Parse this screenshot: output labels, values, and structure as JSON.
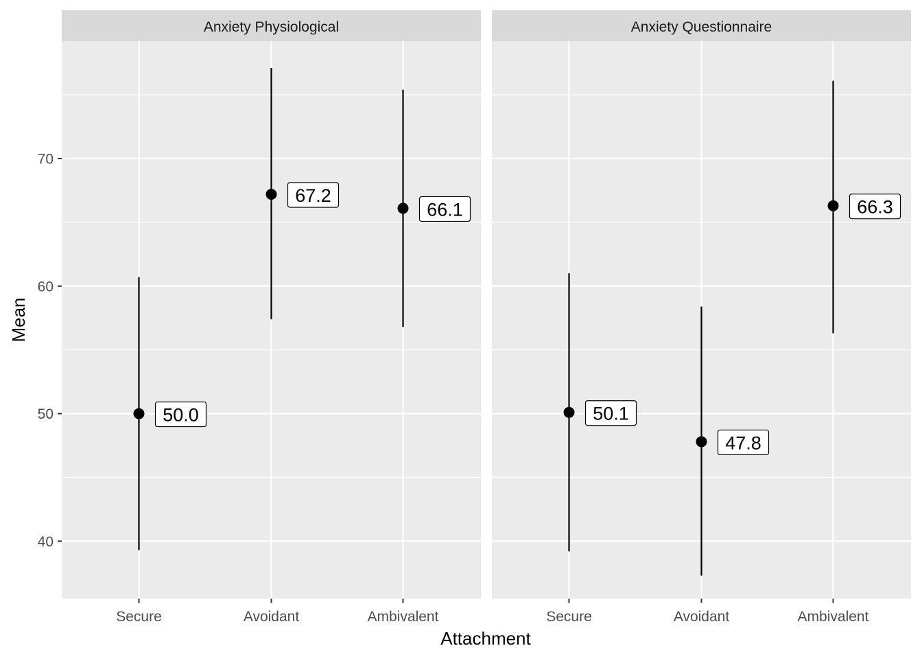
{
  "chart_data": {
    "type": "scatter",
    "subtype": "point-range with value labels, faceted",
    "xlabel": "Attachment",
    "ylabel": "Mean",
    "categories": [
      "Secure",
      "Avoidant",
      "Ambivalent"
    ],
    "ylim": [
      35.5,
      79.2
    ],
    "yticks": [
      40,
      50,
      60,
      70
    ],
    "grid": true,
    "facets": [
      {
        "title": "Anxiety Physiological",
        "points": [
          {
            "category": "Secure",
            "mean": 50.0,
            "lower": 39.3,
            "upper": 60.7,
            "label": "50.0"
          },
          {
            "category": "Avoidant",
            "mean": 67.2,
            "lower": 57.4,
            "upper": 77.1,
            "label": "67.2"
          },
          {
            "category": "Ambivalent",
            "mean": 66.1,
            "lower": 56.8,
            "upper": 75.4,
            "label": "66.1"
          }
        ]
      },
      {
        "title": "Anxiety Questionnaire",
        "points": [
          {
            "category": "Secure",
            "mean": 50.1,
            "lower": 39.2,
            "upper": 61.0,
            "label": "50.1"
          },
          {
            "category": "Avoidant",
            "mean": 47.8,
            "lower": 37.3,
            "upper": 58.4,
            "label": "47.8"
          },
          {
            "category": "Ambivalent",
            "mean": 66.3,
            "lower": 56.3,
            "upper": 76.1,
            "label": "66.3"
          }
        ]
      }
    ]
  }
}
